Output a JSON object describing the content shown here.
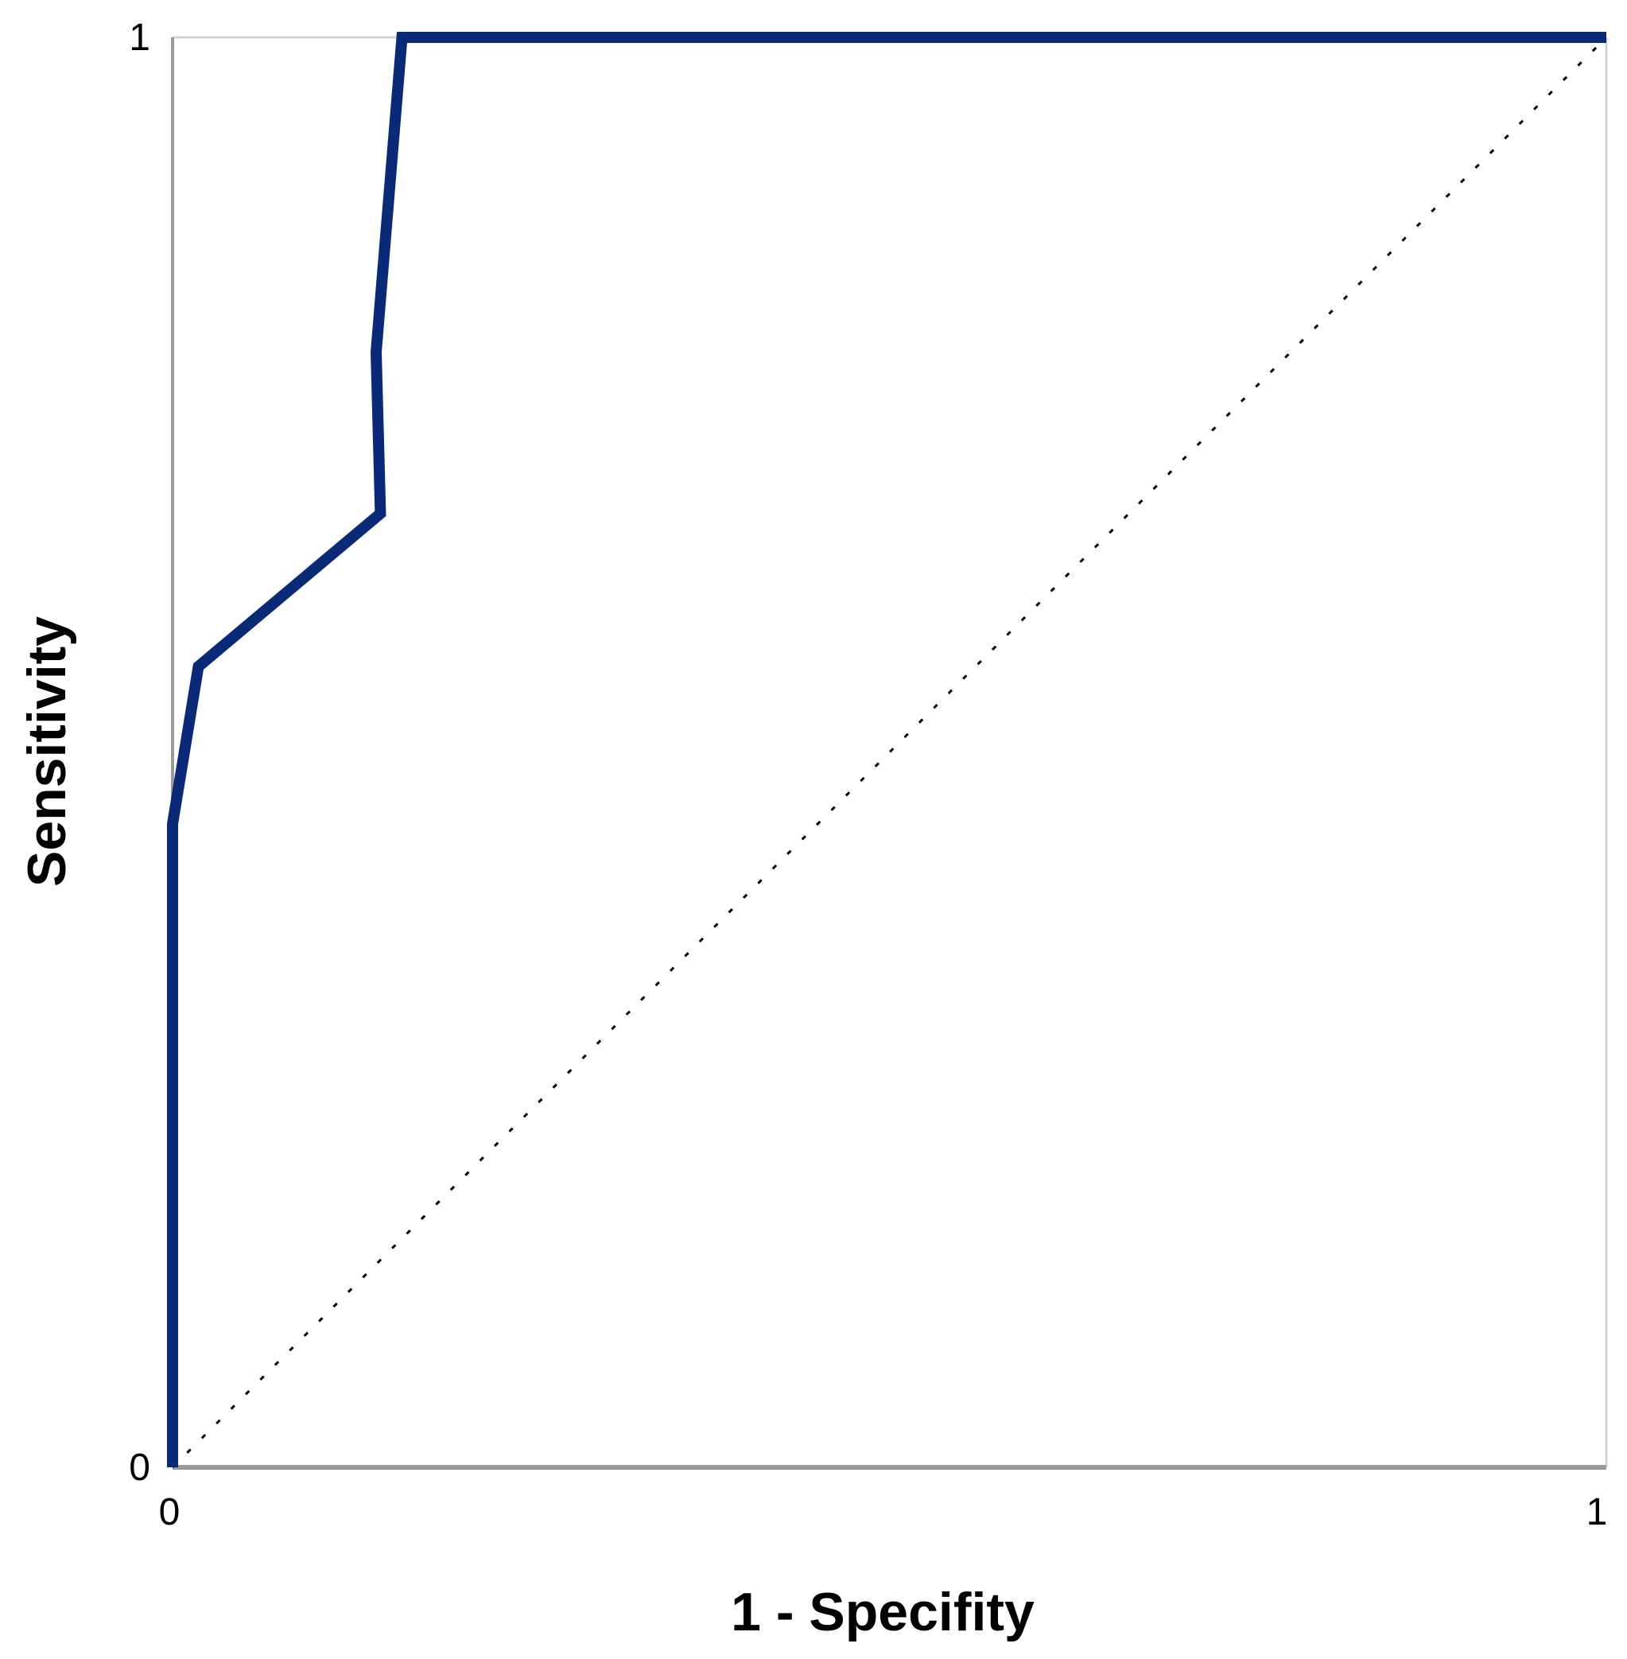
{
  "chart_data": {
    "type": "line",
    "title": "",
    "xlabel": "1 - Specifity",
    "ylabel": "Sensitivity",
    "xlim": [
      0,
      1
    ],
    "ylim": [
      0,
      1
    ],
    "x_ticks": [
      "0",
      "1"
    ],
    "y_ticks": [
      "0",
      "1"
    ],
    "grid": false,
    "legend": "none",
    "series": [
      {
        "color": "#0a2a78",
        "style": "solid",
        "x": [
          0.0,
          0.0,
          0.018,
          0.145,
          0.142,
          0.16,
          1.0
        ],
        "y": [
          0.0,
          0.45,
          0.56,
          0.667,
          0.78,
          1.0,
          1.0
        ]
      },
      {
        "color": "#000000",
        "style": "dotted",
        "x": [
          0,
          1
        ],
        "y": [
          0,
          1
        ]
      }
    ],
    "colors": {
      "axis": "#9a9a9a",
      "frame": "#d4d4d4",
      "curve": "#0a2a78",
      "reference": "#000000"
    }
  }
}
